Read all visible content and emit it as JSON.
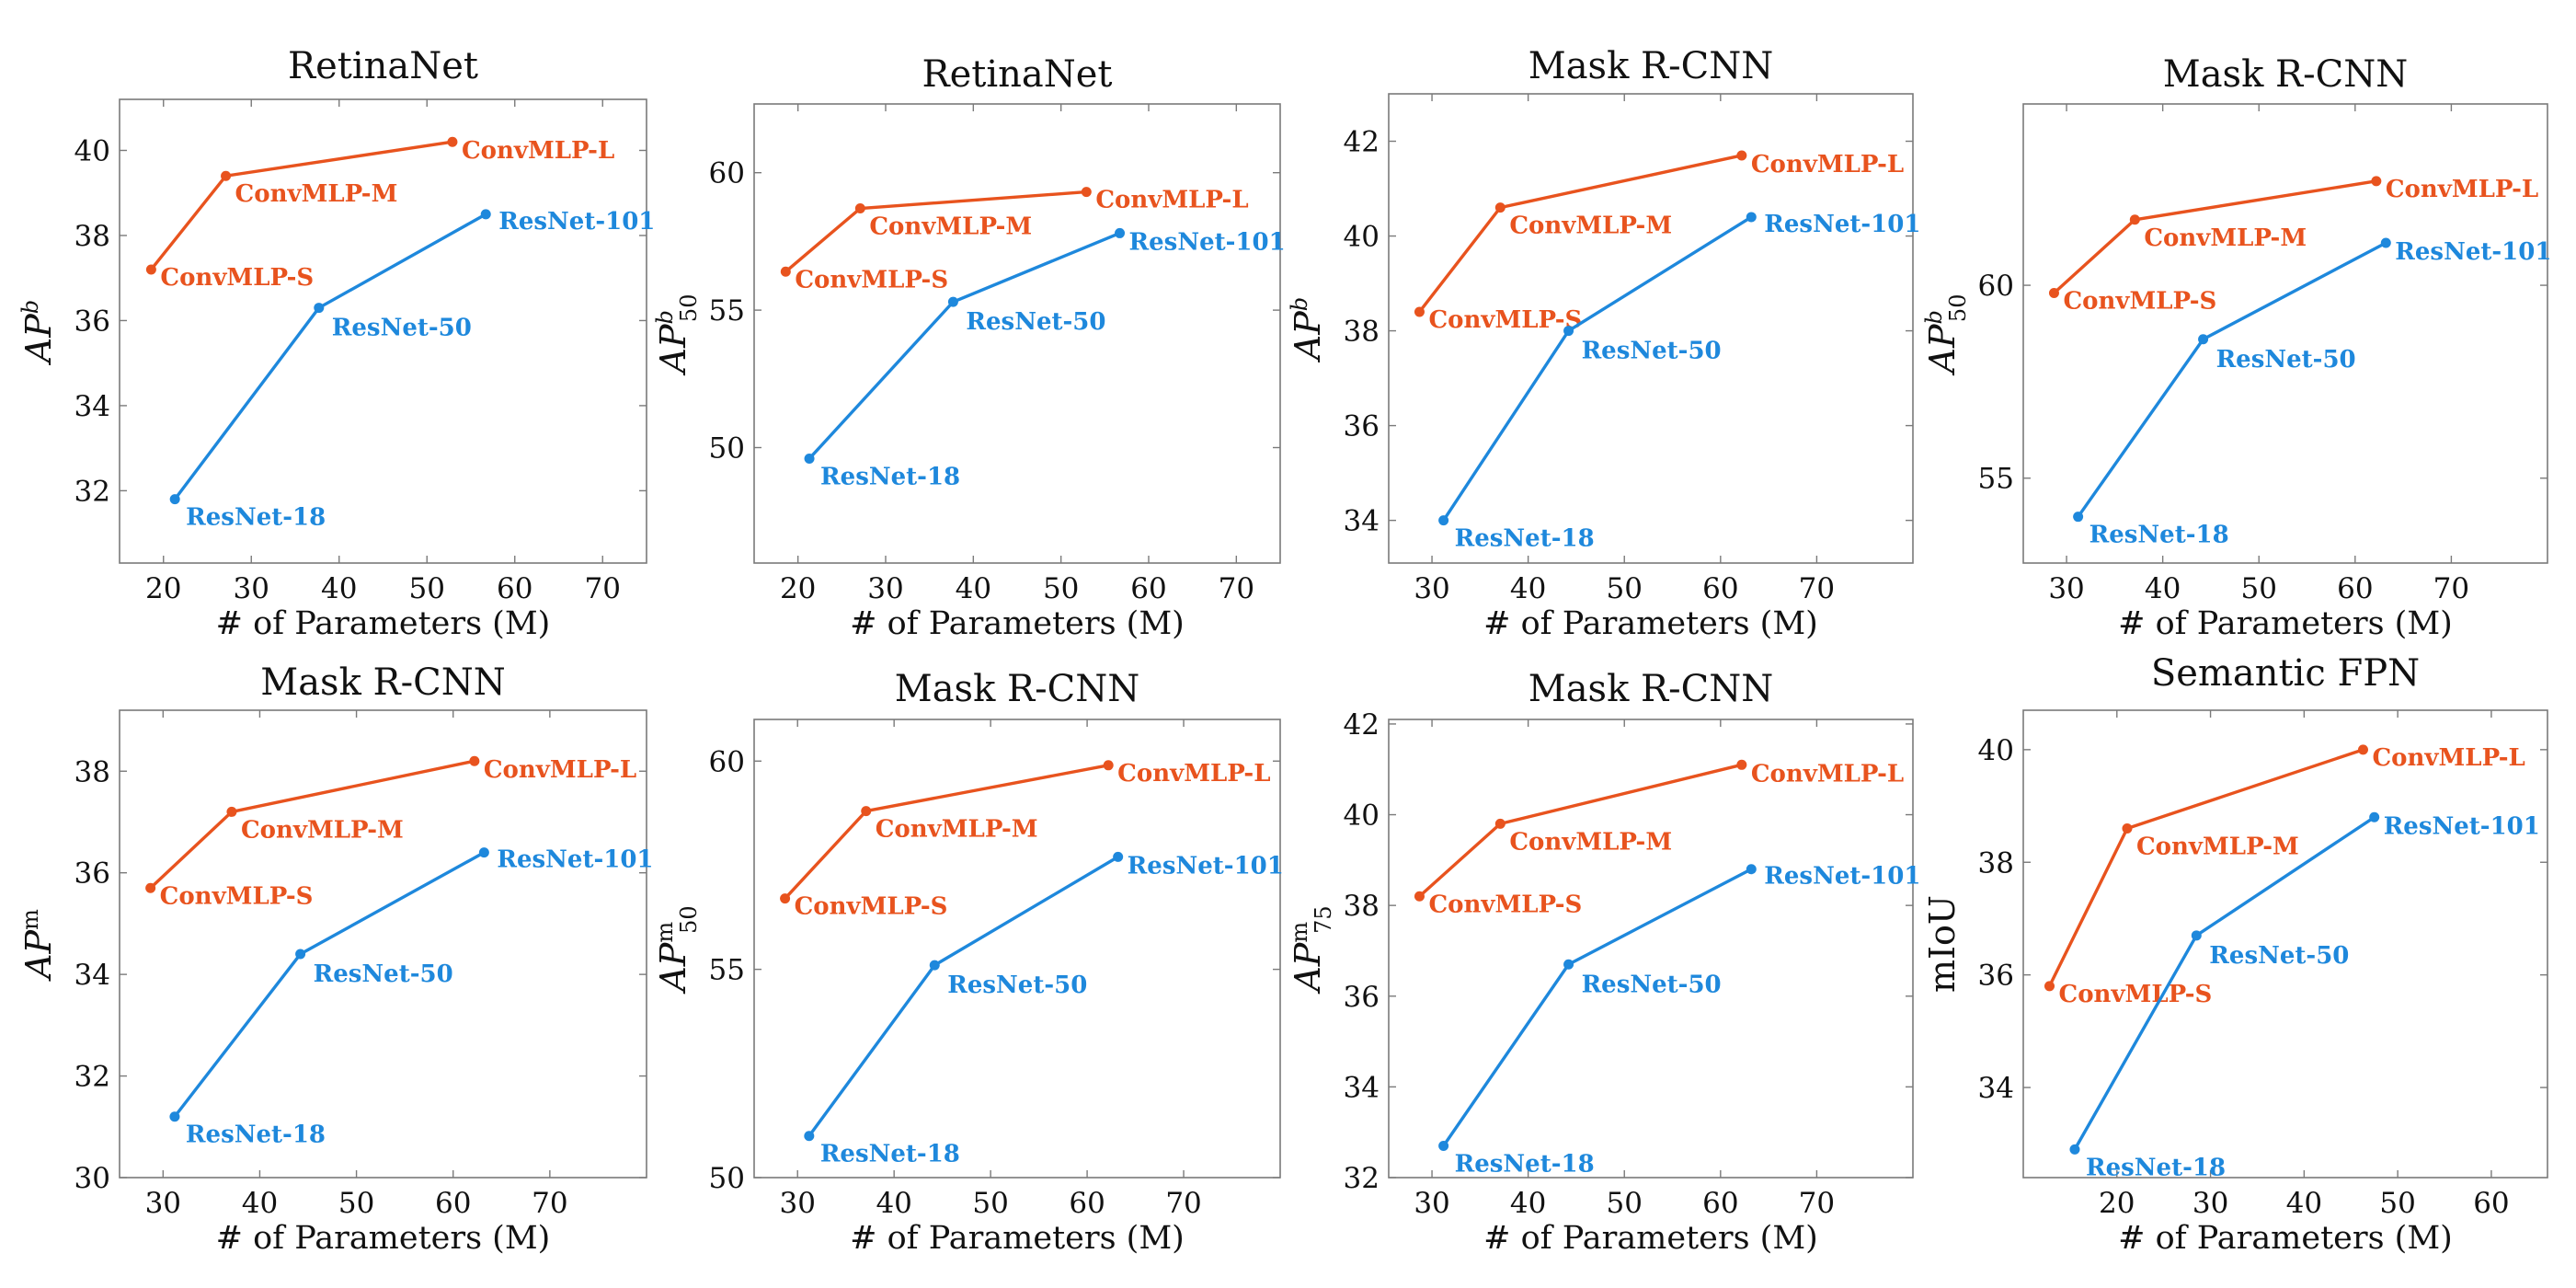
{
  "colors": {
    "convmlp": "#E8531E",
    "resnet": "#1E88DC"
  },
  "chart_data": [
    {
      "type": "line",
      "title": "RetinaNet",
      "xlabel": "# of Parameters (M)",
      "ylabel": {
        "base": "AP",
        "sup": "b",
        "sub": ""
      },
      "xlim": [
        15,
        75
      ],
      "xticks": [
        20,
        30,
        40,
        50,
        60,
        70
      ],
      "ylim": [
        30.3,
        41.2
      ],
      "yticks": [
        32,
        34,
        36,
        38,
        40
      ],
      "series": [
        {
          "name": "ConvMLP",
          "color": "#E8531E",
          "x": [
            18.6,
            27.1,
            52.9
          ],
          "y": [
            37.2,
            39.4,
            40.2
          ],
          "labels": [
            "ConvMLP-S",
            "ConvMLP-M",
            "ConvMLP-L"
          ]
        },
        {
          "name": "ResNet",
          "color": "#1E88DC",
          "x": [
            21.3,
            37.7,
            56.7
          ],
          "y": [
            31.8,
            36.3,
            38.5
          ],
          "labels": [
            "ResNet-18",
            "ResNet-50",
            "ResNet-101"
          ]
        }
      ]
    },
    {
      "type": "line",
      "title": "RetinaNet",
      "xlabel": "# of Parameters (M)",
      "ylabel": {
        "base": "AP",
        "sup": "b",
        "sub": "50"
      },
      "xlim": [
        15,
        75
      ],
      "xticks": [
        20,
        30,
        40,
        50,
        60,
        70
      ],
      "ylim": [
        45.8,
        62.5
      ],
      "yticks": [
        50,
        55,
        60
      ],
      "series": [
        {
          "name": "ConvMLP",
          "color": "#E8531E",
          "x": [
            18.6,
            27.1,
            52.9
          ],
          "y": [
            56.4,
            58.7,
            59.3
          ],
          "labels": [
            "ConvMLP-S",
            "ConvMLP-M",
            "ConvMLP-L"
          ]
        },
        {
          "name": "ResNet",
          "color": "#1E88DC",
          "x": [
            21.3,
            37.7,
            56.7
          ],
          "y": [
            49.6,
            55.3,
            57.8
          ],
          "labels": [
            "ResNet-18",
            "ResNet-50",
            "ResNet-101"
          ]
        }
      ]
    },
    {
      "type": "line",
      "title": "Mask R-CNN",
      "xlabel": "# of Parameters (M)",
      "ylabel": {
        "base": "AP",
        "sup": "b",
        "sub": ""
      },
      "xlim": [
        25.5,
        80
      ],
      "xticks": [
        30,
        40,
        50,
        60,
        70
      ],
      "ylim": [
        33.1,
        43.0
      ],
      "yticks": [
        34,
        36,
        38,
        40,
        42
      ],
      "series": [
        {
          "name": "ConvMLP",
          "color": "#E8531E",
          "x": [
            28.7,
            37.1,
            62.2
          ],
          "y": [
            38.4,
            40.6,
            41.7
          ],
          "labels": [
            "ConvMLP-S",
            "ConvMLP-M",
            "ConvMLP-L"
          ]
        },
        {
          "name": "ResNet",
          "color": "#1E88DC",
          "x": [
            31.2,
            44.2,
            63.2
          ],
          "y": [
            34.0,
            38.0,
            40.4
          ],
          "labels": [
            "ResNet-18",
            "ResNet-50",
            "ResNet-101"
          ]
        }
      ]
    },
    {
      "type": "line",
      "title": "Mask R-CNN",
      "xlabel": "# of Parameters (M)",
      "ylabel": {
        "base": "AP",
        "sup": "b",
        "sub": "50"
      },
      "xlim": [
        25.5,
        80
      ],
      "xticks": [
        30,
        40,
        50,
        60,
        70
      ],
      "ylim": [
        52.8,
        64.7
      ],
      "yticks": [
        55,
        60
      ],
      "series": [
        {
          "name": "ConvMLP",
          "color": "#E8531E",
          "x": [
            28.7,
            37.1,
            62.2
          ],
          "y": [
            59.8,
            61.7,
            62.7
          ],
          "labels": [
            "ConvMLP-S",
            "ConvMLP-M",
            "ConvMLP-L"
          ]
        },
        {
          "name": "ResNet",
          "color": "#1E88DC",
          "x": [
            31.2,
            44.2,
            63.2
          ],
          "y": [
            54.0,
            58.6,
            61.1
          ],
          "labels": [
            "ResNet-18",
            "ResNet-50",
            "ResNet-101"
          ]
        }
      ]
    },
    {
      "type": "line",
      "title": "Mask R-CNN",
      "xlabel": "# of Parameters (M)",
      "ylabel": {
        "base": "AP",
        "sup": "m",
        "sub": ""
      },
      "xlim": [
        25.5,
        80
      ],
      "xticks": [
        30,
        40,
        50,
        60,
        70
      ],
      "ylim": [
        30,
        39.2
      ],
      "yticks": [
        30,
        32,
        34,
        36,
        38
      ],
      "series": [
        {
          "name": "ConvMLP",
          "color": "#E8531E",
          "x": [
            28.7,
            37.1,
            62.2
          ],
          "y": [
            35.7,
            37.2,
            38.2
          ],
          "labels": [
            "ConvMLP-S",
            "ConvMLP-M",
            "ConvMLP-L"
          ]
        },
        {
          "name": "ResNet",
          "color": "#1E88DC",
          "x": [
            31.2,
            44.2,
            63.2
          ],
          "y": [
            31.2,
            34.4,
            36.4
          ],
          "labels": [
            "ResNet-18",
            "ResNet-50",
            "ResNet-101"
          ]
        }
      ]
    },
    {
      "type": "line",
      "title": "Mask R-CNN",
      "xlabel": "# of Parameters (M)",
      "ylabel": {
        "base": "AP",
        "sup": "m",
        "sub": "50"
      },
      "xlim": [
        25.5,
        80
      ],
      "xticks": [
        30,
        40,
        50,
        60,
        70
      ],
      "ylim": [
        50,
        61
      ],
      "yticks": [
        50,
        55,
        60
      ],
      "series": [
        {
          "name": "ConvMLP",
          "color": "#E8531E",
          "x": [
            28.7,
            37.1,
            62.2
          ],
          "y": [
            56.7,
            58.8,
            59.9
          ],
          "labels": [
            "ConvMLP-S",
            "ConvMLP-M",
            "ConvMLP-L"
          ]
        },
        {
          "name": "ResNet",
          "color": "#1E88DC",
          "x": [
            31.2,
            44.2,
            63.2
          ],
          "y": [
            51.0,
            55.1,
            57.7
          ],
          "labels": [
            "ResNet-18",
            "ResNet-50",
            "ResNet-101"
          ]
        }
      ]
    },
    {
      "type": "line",
      "title": "Mask R-CNN",
      "xlabel": "# of Parameters (M)",
      "ylabel": {
        "base": "AP",
        "sup": "m",
        "sub": "75"
      },
      "xlim": [
        25.5,
        80
      ],
      "xticks": [
        30,
        40,
        50,
        60,
        70
      ],
      "ylim": [
        32,
        42.1
      ],
      "yticks": [
        32,
        34,
        36,
        38,
        40,
        42
      ],
      "series": [
        {
          "name": "ConvMLP",
          "color": "#E8531E",
          "x": [
            28.7,
            37.1,
            62.2
          ],
          "y": [
            38.2,
            39.8,
            41.1
          ],
          "labels": [
            "ConvMLP-S",
            "ConvMLP-M",
            "ConvMLP-L"
          ]
        },
        {
          "name": "ResNet",
          "color": "#1E88DC",
          "x": [
            31.2,
            44.2,
            63.2
          ],
          "y": [
            32.7,
            36.7,
            38.8
          ],
          "labels": [
            "ResNet-18",
            "ResNet-50",
            "ResNet-101"
          ]
        }
      ]
    },
    {
      "type": "line",
      "title": "Semantic FPN",
      "xlabel": "# of Parameters (M)",
      "ylabel": {
        "base": "mIoU",
        "sup": "",
        "sub": ""
      },
      "xlim": [
        10,
        66
      ],
      "xticks": [
        20,
        30,
        40,
        50,
        60
      ],
      "ylim": [
        32.4,
        40.7
      ],
      "yticks": [
        34,
        36,
        38,
        40
      ],
      "series": [
        {
          "name": "ConvMLP",
          "color": "#E8531E",
          "x": [
            12.8,
            21.1,
            46.3
          ],
          "y": [
            35.8,
            38.6,
            40.0
          ],
          "labels": [
            "ConvMLP-S",
            "ConvMLP-M",
            "ConvMLP-L"
          ]
        },
        {
          "name": "ResNet",
          "color": "#1E88DC",
          "x": [
            15.5,
            28.5,
            47.5
          ],
          "y": [
            32.9,
            36.7,
            38.8
          ],
          "labels": [
            "ResNet-18",
            "ResNet-50",
            "ResNet-101"
          ]
        }
      ]
    }
  ]
}
